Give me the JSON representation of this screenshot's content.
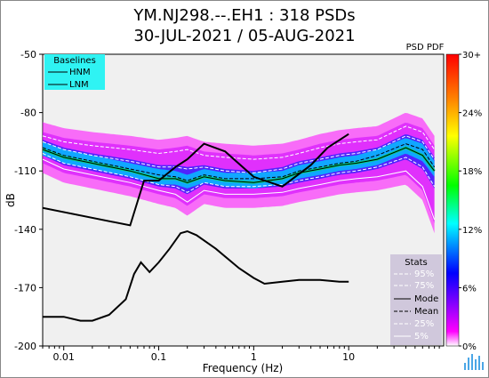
{
  "title_line1": "YM.NJ298.--.EH1 : 318 PSDs",
  "title_line2": "30-JUL-2021 / 05-AUG-2021",
  "chart_data": {
    "type": "heatmap",
    "xlabel": "Frequency (Hz)",
    "ylabel": "dB",
    "xscale": "log",
    "xlim": [
      0.006,
      100
    ],
    "ylim": [
      -200,
      -50
    ],
    "xticks": [
      0.01,
      0.1,
      1,
      10
    ],
    "xtick_labels": [
      "0.01",
      "0.1",
      "1",
      "10"
    ],
    "yticks": [
      -50,
      -80,
      -110,
      -140,
      -170,
      -200
    ],
    "colorbar": {
      "title": "PSD PDF",
      "ticks": [
        "30+",
        "24%",
        "18%",
        "12%",
        "6%",
        "0%"
      ],
      "colors": [
        "#ff0000",
        "#ff8000",
        "#ffff00",
        "#00ff00",
        "#00ffff",
        "#0000ff",
        "#ff00ff",
        "#ffffff"
      ]
    },
    "baselines": {
      "title": "Baselines",
      "entries": [
        "HNM",
        "LNM"
      ],
      "hnm": {
        "x": [
          0.006,
          0.05,
          0.07,
          0.1,
          0.15,
          0.2,
          0.3,
          0.5,
          1,
          2,
          4,
          6,
          10
        ],
        "y": [
          -129,
          -138,
          -115,
          -115,
          -108,
          -104,
          -96,
          -100,
          -113,
          -118,
          -107,
          -98,
          -91
        ]
      },
      "lnm": {
        "x": [
          0.006,
          0.01,
          0.015,
          0.02,
          0.03,
          0.045,
          0.055,
          0.065,
          0.08,
          0.1,
          0.13,
          0.17,
          0.2,
          0.25,
          0.4,
          0.7,
          1,
          1.3,
          2,
          3,
          5,
          8,
          10
        ],
        "y": [
          -185,
          -185,
          -187,
          -187,
          -184,
          -176,
          -163,
          -157,
          -162,
          -157,
          -150,
          -142,
          -141,
          -143,
          -150,
          -160,
          -165,
          -168,
          -167,
          -166,
          -166,
          -167,
          -167
        ]
      }
    },
    "stats": {
      "title": "Stats",
      "entries": [
        "95%",
        "75%",
        "Mode",
        "Mean",
        "25%",
        "5%"
      ]
    },
    "series": [
      {
        "name": "Mode",
        "x": [
          0.006,
          0.01,
          0.02,
          0.05,
          0.1,
          0.15,
          0.2,
          0.3,
          0.5,
          1,
          2,
          3,
          5,
          8,
          12,
          20,
          40,
          60,
          80
        ],
        "y": [
          -99,
          -103,
          -106,
          -110,
          -114,
          -114,
          -116,
          -113,
          -115,
          -116,
          -114,
          -111,
          -109,
          -107,
          -106,
          -104,
          -98,
          -102,
          -110
        ]
      },
      {
        "name": "Mean",
        "x": [
          0.006,
          0.01,
          0.02,
          0.05,
          0.1,
          0.15,
          0.2,
          0.3,
          0.5,
          1,
          2,
          3,
          5,
          8,
          12,
          20,
          40,
          60,
          80
        ],
        "y": [
          -98,
          -102,
          -105,
          -109,
          -112,
          -113,
          -115,
          -112,
          -114,
          -114,
          -113,
          -110,
          -108,
          -106,
          -105,
          -102,
          -96,
          -99,
          -108
        ]
      },
      {
        "name": "95%",
        "x": [
          0.006,
          0.01,
          0.02,
          0.05,
          0.1,
          0.15,
          0.2,
          0.3,
          0.5,
          1,
          2,
          3,
          5,
          8,
          12,
          20,
          40,
          60,
          80
        ],
        "y": [
          -92,
          -95,
          -97,
          -99,
          -101,
          -100,
          -99,
          -102,
          -103,
          -104,
          -103,
          -101,
          -98,
          -96,
          -95,
          -94,
          -87,
          -90,
          -99
        ]
      },
      {
        "name": "75%",
        "x": [
          0.006,
          0.01,
          0.02,
          0.05,
          0.1,
          0.15,
          0.2,
          0.3,
          0.5,
          1,
          2,
          3,
          5,
          8,
          12,
          20,
          40,
          60,
          80
        ],
        "y": [
          -95,
          -99,
          -102,
          -105,
          -108,
          -108,
          -109,
          -108,
          -110,
          -111,
          -109,
          -106,
          -104,
          -102,
          -101,
          -99,
          -92,
          -95,
          -104
        ]
      },
      {
        "name": "25%",
        "x": [
          0.006,
          0.01,
          0.02,
          0.05,
          0.1,
          0.15,
          0.2,
          0.3,
          0.5,
          1,
          2,
          3,
          5,
          8,
          12,
          20,
          40,
          60,
          80
        ],
        "y": [
          -101,
          -106,
          -109,
          -113,
          -117,
          -118,
          -121,
          -116,
          -118,
          -118,
          -117,
          -115,
          -113,
          -111,
          -110,
          -108,
          -103,
          -108,
          -118
        ]
      },
      {
        "name": "5%",
        "x": [
          0.006,
          0.01,
          0.02,
          0.05,
          0.1,
          0.15,
          0.2,
          0.3,
          0.5,
          1,
          2,
          3,
          5,
          8,
          12,
          20,
          40,
          60,
          80
        ],
        "y": [
          -104,
          -109,
          -112,
          -116,
          -120,
          -122,
          -126,
          -120,
          -122,
          -122,
          -121,
          -119,
          -117,
          -115,
          -114,
          -113,
          -110,
          -118,
          -135
        ]
      }
    ]
  }
}
